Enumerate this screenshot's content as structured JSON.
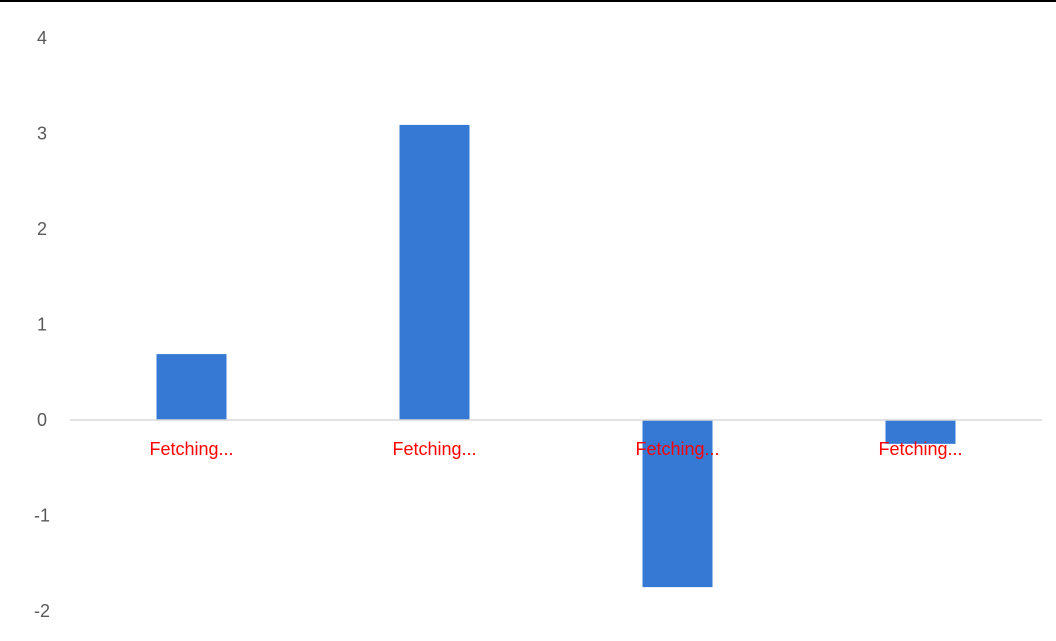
{
  "chart_data": {
    "type": "bar",
    "categories": [
      "Fetching...",
      "Fetching...",
      "Fetching...",
      "Fetching..."
    ],
    "values": [
      0.69,
      3.09,
      -1.75,
      -0.25
    ],
    "title": "",
    "xlabel": "",
    "ylabel": "",
    "ylim": [
      -2,
      4
    ],
    "yticks": [
      4,
      3,
      2,
      1,
      0,
      -1,
      -2
    ],
    "grid": false,
    "bar_color": "#3579D4",
    "category_label_color": "#FF0000",
    "zero_line_color": "#D9D9D9"
  }
}
